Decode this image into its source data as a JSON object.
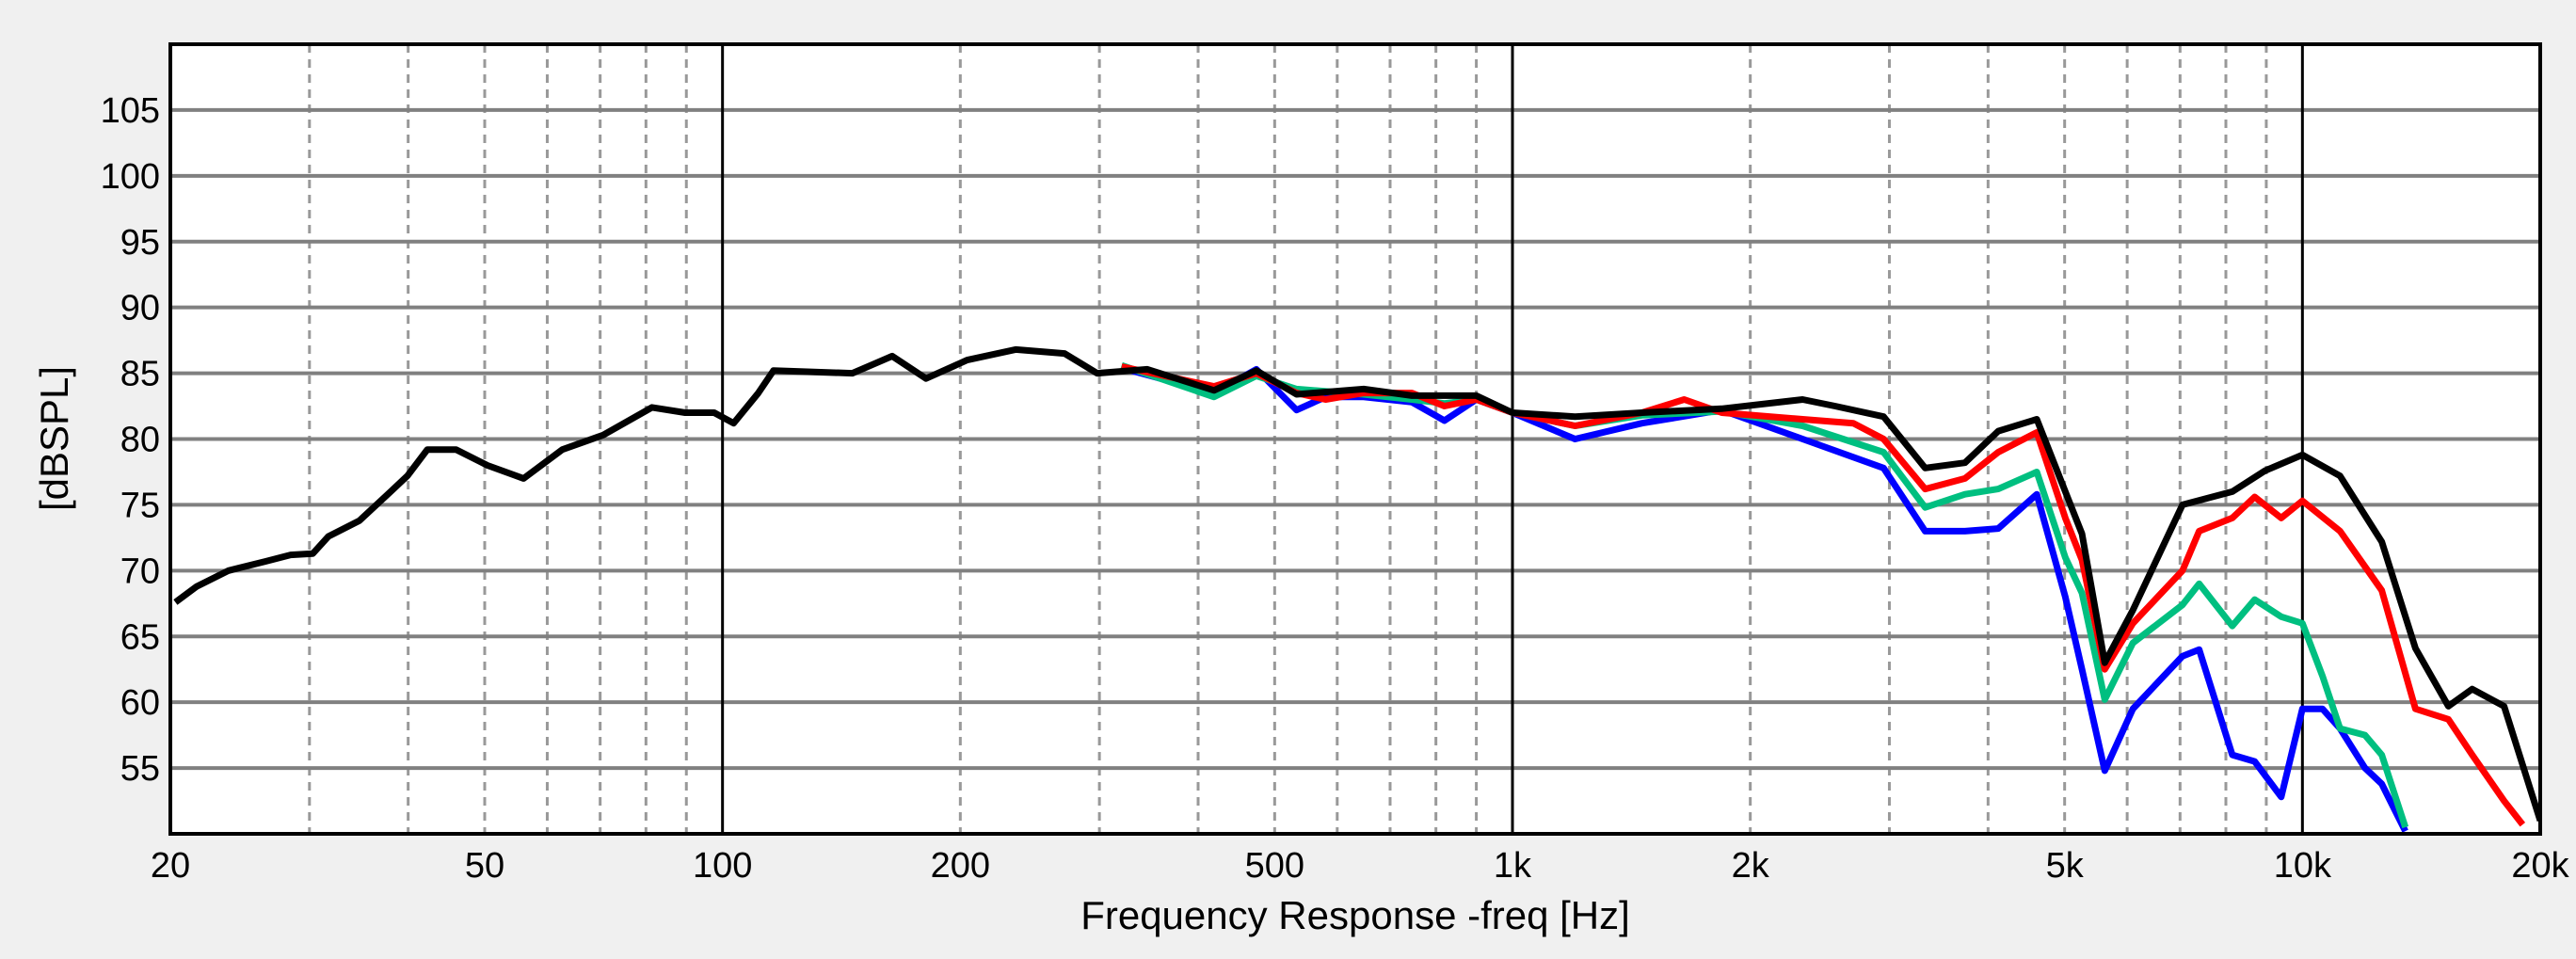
{
  "chart_data": {
    "type": "line",
    "title": "",
    "xlabel": "Frequency Response -freq [Hz]",
    "ylabel": "[dBSPL]",
    "xscale": "log",
    "xlim": [
      20,
      20000
    ],
    "ylim": [
      50,
      110
    ],
    "grid": true,
    "legend": null,
    "x_ticks": [
      {
        "value": 20,
        "label": "20"
      },
      {
        "value": 50,
        "label": "50"
      },
      {
        "value": 100,
        "label": "100"
      },
      {
        "value": 200,
        "label": "200"
      },
      {
        "value": 500,
        "label": "500"
      },
      {
        "value": 1000,
        "label": "1k"
      },
      {
        "value": 2000,
        "label": "2k"
      },
      {
        "value": 5000,
        "label": "5k"
      },
      {
        "value": 10000,
        "label": "10k"
      },
      {
        "value": 20000,
        "label": "20k"
      }
    ],
    "y_ticks": [
      55,
      60,
      65,
      70,
      75,
      80,
      85,
      90,
      95,
      100,
      105
    ],
    "series": [
      {
        "name": "black",
        "color": "#000000",
        "points": [
          [
            20.3,
            67.6
          ],
          [
            21.6,
            68.8
          ],
          [
            23.7,
            70
          ],
          [
            26.4,
            70.7
          ],
          [
            28.4,
            71.2
          ],
          [
            30.3,
            71.3
          ],
          [
            31.7,
            72.6
          ],
          [
            34.7,
            73.8
          ],
          [
            38,
            76
          ],
          [
            39.9,
            77.2
          ],
          [
            42.3,
            79.2
          ],
          [
            46,
            79.2
          ],
          [
            50.4,
            78
          ],
          [
            56,
            77
          ],
          [
            62.7,
            79.2
          ],
          [
            70.6,
            80.3
          ],
          [
            81.4,
            82.4
          ],
          [
            89.7,
            82
          ],
          [
            97.6,
            82
          ],
          [
            103.3,
            81.2
          ],
          [
            111,
            83.5
          ],
          [
            116,
            85.2
          ],
          [
            146,
            85
          ],
          [
            164,
            86.3
          ],
          [
            181,
            84.6
          ],
          [
            204,
            86
          ],
          [
            235,
            86.8
          ],
          [
            271,
            86.5
          ],
          [
            298,
            85
          ],
          [
            345,
            85.3
          ],
          [
            419,
            83.7
          ],
          [
            474,
            85.2
          ],
          [
            533,
            83.4
          ],
          [
            648,
            83.8
          ],
          [
            746,
            83.3
          ],
          [
            900,
            83.3
          ],
          [
            1000,
            82
          ],
          [
            1200,
            81.7
          ],
          [
            1459,
            82
          ],
          [
            1840,
            82.3
          ],
          [
            2330,
            83
          ],
          [
            2560,
            82.5
          ],
          [
            2950,
            81.7
          ],
          [
            3330,
            77.8
          ],
          [
            3740,
            78.2
          ],
          [
            4120,
            80.6
          ],
          [
            4610,
            81.5
          ],
          [
            5010,
            76
          ],
          [
            5260,
            72.8
          ],
          [
            5620,
            63
          ],
          [
            6100,
            67
          ],
          [
            7050,
            75
          ],
          [
            8150,
            76
          ],
          [
            8970,
            77.6
          ],
          [
            10000,
            78.8
          ],
          [
            11160,
            77.2
          ],
          [
            12600,
            72.2
          ],
          [
            13900,
            64.1
          ],
          [
            15300,
            59.7
          ],
          [
            16400,
            61
          ],
          [
            18000,
            59.7
          ],
          [
            20000,
            51
          ]
        ]
      },
      {
        "name": "red",
        "color": "#ff0000",
        "points": [
          [
            320,
            85.5
          ],
          [
            419,
            84
          ],
          [
            474,
            85
          ],
          [
            533,
            83.5
          ],
          [
            580,
            83
          ],
          [
            648,
            83.5
          ],
          [
            746,
            83.5
          ],
          [
            820,
            82.5
          ],
          [
            900,
            83
          ],
          [
            1000,
            82
          ],
          [
            1200,
            81
          ],
          [
            1459,
            82
          ],
          [
            1650,
            83
          ],
          [
            1840,
            82
          ],
          [
            2330,
            81.5
          ],
          [
            2700,
            81.2
          ],
          [
            2950,
            80
          ],
          [
            3330,
            76.2
          ],
          [
            3740,
            77
          ],
          [
            4120,
            79
          ],
          [
            4610,
            80.5
          ],
          [
            5010,
            74
          ],
          [
            5260,
            70.8
          ],
          [
            5620,
            62.5
          ],
          [
            6100,
            66
          ],
          [
            7050,
            70
          ],
          [
            7400,
            73
          ],
          [
            8150,
            74
          ],
          [
            8700,
            75.6
          ],
          [
            9400,
            74
          ],
          [
            10000,
            75.3
          ],
          [
            11160,
            73
          ],
          [
            12600,
            68.5
          ],
          [
            13900,
            59.5
          ],
          [
            15300,
            58.7
          ],
          [
            16400,
            56
          ],
          [
            18000,
            52.5
          ],
          [
            19000,
            50.7
          ]
        ]
      },
      {
        "name": "green",
        "color": "#00bf80",
        "points": [
          [
            320,
            85.6
          ],
          [
            419,
            83.2
          ],
          [
            474,
            84.8
          ],
          [
            533,
            83.8
          ],
          [
            648,
            83.4
          ],
          [
            746,
            83
          ],
          [
            820,
            82.7
          ],
          [
            900,
            83
          ],
          [
            1000,
            82
          ],
          [
            1200,
            81
          ],
          [
            1459,
            81.8
          ],
          [
            1840,
            82.1
          ],
          [
            2330,
            81
          ],
          [
            2950,
            79
          ],
          [
            3330,
            74.8
          ],
          [
            3740,
            75.8
          ],
          [
            4120,
            76.2
          ],
          [
            4610,
            77.5
          ],
          [
            5010,
            71
          ],
          [
            5260,
            68.3
          ],
          [
            5620,
            60.2
          ],
          [
            6100,
            64.5
          ],
          [
            7050,
            67.4
          ],
          [
            7400,
            69
          ],
          [
            8150,
            65.8
          ],
          [
            8700,
            67.8
          ],
          [
            9400,
            66.5
          ],
          [
            10000,
            66
          ],
          [
            10600,
            62
          ],
          [
            11160,
            58
          ],
          [
            12000,
            57.5
          ],
          [
            12600,
            56
          ],
          [
            13500,
            50.5
          ]
        ]
      },
      {
        "name": "blue",
        "color": "#0000ff",
        "points": [
          [
            320,
            85.4
          ],
          [
            419,
            83.5
          ],
          [
            474,
            85.3
          ],
          [
            533,
            82.2
          ],
          [
            580,
            83.2
          ],
          [
            648,
            83.2
          ],
          [
            746,
            82.8
          ],
          [
            820,
            81.4
          ],
          [
            900,
            83
          ],
          [
            1000,
            82
          ],
          [
            1200,
            80
          ],
          [
            1459,
            81.2
          ],
          [
            1840,
            82.2
          ],
          [
            2330,
            80
          ],
          [
            2950,
            77.8
          ],
          [
            3330,
            73
          ],
          [
            3740,
            73
          ],
          [
            4120,
            73.2
          ],
          [
            4610,
            75.8
          ],
          [
            5010,
            68
          ],
          [
            5260,
            62.5
          ],
          [
            5620,
            54.8
          ],
          [
            6100,
            59.5
          ],
          [
            7050,
            63.5
          ],
          [
            7400,
            64
          ],
          [
            8150,
            56
          ],
          [
            8700,
            55.5
          ],
          [
            9400,
            52.8
          ],
          [
            10000,
            59.5
          ],
          [
            10600,
            59.5
          ],
          [
            11160,
            58
          ],
          [
            12000,
            55
          ],
          [
            12600,
            53.8
          ],
          [
            13500,
            50.2
          ]
        ]
      }
    ]
  },
  "axes": {
    "ylabel": "[dBSPL]",
    "xlabel": "Frequency Response -freq [Hz]"
  }
}
